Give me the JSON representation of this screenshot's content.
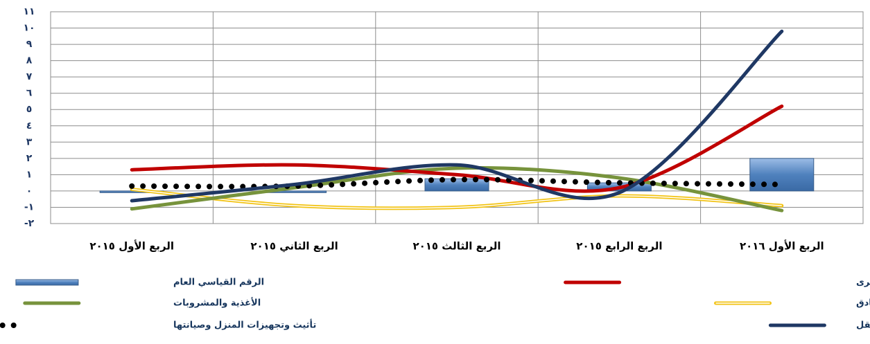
{
  "chart_data": {
    "type": "combo",
    "categories": [
      "الربع الأول ٢٠١٥",
      "الربع الثاني ٢٠١٥",
      "الربع الثالث ٢٠١٥",
      "الربع الرابع ٢٠١٥",
      "الربع الأول ٢٠١٦"
    ],
    "series": [
      {
        "name": "الرقم القياسي العام",
        "type": "bar",
        "color": "#4f81bd",
        "values": [
          -0.1,
          -0.1,
          0.75,
          0.5,
          2.0
        ]
      },
      {
        "name": "المطاعم والفنادق",
        "type": "line",
        "style": "double",
        "color": "#f2c314",
        "values": [
          0.1,
          -0.9,
          -1.0,
          -0.3,
          -0.9
        ]
      },
      {
        "name": "الأغذية والمشروبات",
        "type": "line",
        "style": "solid",
        "color": "#77933c",
        "values": [
          -1.1,
          0.2,
          1.4,
          0.8,
          -1.2
        ]
      },
      {
        "name": "السكن والمياه والكهرباء والغاز وأنواع الوقود الاخرى",
        "type": "line",
        "style": "solid",
        "color": "#c00000",
        "values": [
          1.3,
          1.6,
          1.0,
          0.2,
          5.2
        ]
      },
      {
        "name": "تأثيث وتجهيزات المنزل وصيانتها",
        "type": "line",
        "style": "dotted",
        "color": "#000000",
        "values": [
          0.3,
          0.3,
          0.7,
          0.5,
          0.4
        ]
      },
      {
        "name": "النقل",
        "type": "line",
        "style": "solid",
        "color": "#1f3864",
        "values": [
          -0.6,
          0.4,
          1.6,
          -0.1,
          9.8
        ]
      }
    ],
    "ylim": [
      -2,
      11
    ],
    "yticks": [
      {
        "value": -2,
        "label": "-٢"
      },
      {
        "value": -1,
        "label": "-١"
      },
      {
        "value": 0,
        "label": "٠"
      },
      {
        "value": 1,
        "label": "١"
      },
      {
        "value": 2,
        "label": "٢"
      },
      {
        "value": 3,
        "label": "٣"
      },
      {
        "value": 4,
        "label": "٤"
      },
      {
        "value": 5,
        "label": "٥"
      },
      {
        "value": 6,
        "label": "٦"
      },
      {
        "value": 7,
        "label": "٧"
      },
      {
        "value": 8,
        "label": "٨"
      },
      {
        "value": 9,
        "label": "٩"
      },
      {
        "value": 10,
        "label": "١٠"
      },
      {
        "value": 11,
        "label": "١١"
      }
    ],
    "grid": true
  }
}
